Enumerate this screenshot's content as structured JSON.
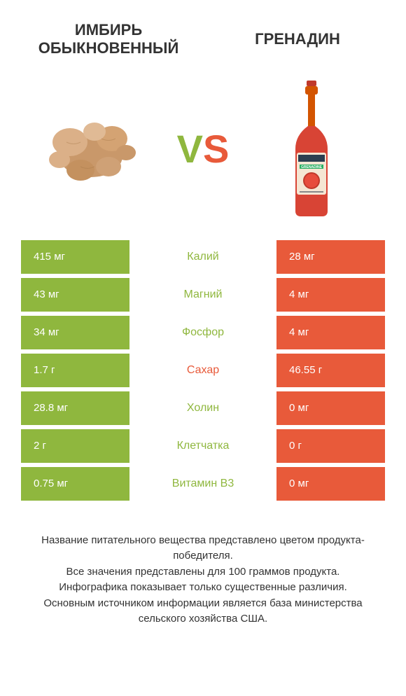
{
  "colors": {
    "green": "#8fb73e",
    "orange": "#e85a3a",
    "text_dark": "#333333",
    "bg": "#ffffff"
  },
  "header": {
    "left_title": "Имбирь обыкновенный",
    "right_title": "Гренадин"
  },
  "vs": {
    "v": "V",
    "s": "S"
  },
  "rows": [
    {
      "label": "Калий",
      "left": "415 мг",
      "right": "28 мг",
      "winner": "left"
    },
    {
      "label": "Магний",
      "left": "43 мг",
      "right": "4 мг",
      "winner": "left"
    },
    {
      "label": "Фосфор",
      "left": "34 мг",
      "right": "4 мг",
      "winner": "left"
    },
    {
      "label": "Сахар",
      "left": "1.7 г",
      "right": "46.55 г",
      "winner": "right"
    },
    {
      "label": "Холин",
      "left": "28.8 мг",
      "right": "0 мг",
      "winner": "left"
    },
    {
      "label": "Клетчатка",
      "left": "2 г",
      "right": "0 г",
      "winner": "left"
    },
    {
      "label": "Витамин B3",
      "left": "0.75 мг",
      "right": "0 мг",
      "winner": "left"
    }
  ],
  "footer": {
    "line1": "Название питательного вещества представлено цветом продукта-победителя.",
    "line2": "Все значения представлены для 100 граммов продукта.",
    "line3": "Инфографика показывает только существенные различия.",
    "line4": "Основным источником информации является база министерства сельского хозяйства США."
  }
}
